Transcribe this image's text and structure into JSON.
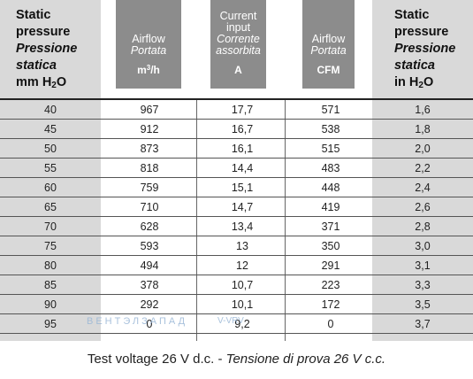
{
  "headers": {
    "col0": {
      "line1": "Static",
      "line2": "pressure",
      "line3": "Pressione",
      "line4": "statica",
      "line5_pre": "mm H",
      "line5_sub": "2",
      "line5_post": "O"
    },
    "col1": {
      "line1": "Airflow",
      "line2": "Portata",
      "unit_pre": "m",
      "unit_sup": "3",
      "unit_post": "/h"
    },
    "col2": {
      "line1": "Current",
      "line2": "input",
      "line3": "Corrente",
      "line4": "assorbita",
      "unit": "A"
    },
    "col3": {
      "line1": "Airflow",
      "line2": "Portata",
      "unit": "CFM"
    },
    "col4": {
      "line1": "Static",
      "line2": "pressure",
      "line3": "Pressione",
      "line4": "statica",
      "line5_pre": "in H",
      "line5_sub": "2",
      "line5_post": "O"
    }
  },
  "rows": [
    [
      "40",
      "967",
      "17,7",
      "571",
      "1,6"
    ],
    [
      "45",
      "912",
      "16,7",
      "538",
      "1,8"
    ],
    [
      "50",
      "873",
      "16,1",
      "515",
      "2,0"
    ],
    [
      "55",
      "818",
      "14,4",
      "483",
      "2,2"
    ],
    [
      "60",
      "759",
      "15,1",
      "448",
      "2,4"
    ],
    [
      "65",
      "710",
      "14,7",
      "419",
      "2,6"
    ],
    [
      "70",
      "628",
      "13,4",
      "371",
      "2,8"
    ],
    [
      "75",
      "593",
      "13",
      "350",
      "3,0"
    ],
    [
      "80",
      "494",
      "12",
      "291",
      "3,1"
    ],
    [
      "85",
      "378",
      "10,7",
      "223",
      "3,3"
    ],
    [
      "90",
      "292",
      "10,1",
      "172",
      "3,5"
    ],
    [
      "95",
      "0",
      "9,2",
      "0",
      "3,7"
    ]
  ],
  "watermark": {
    "text": "ВЕНТЭЛЗАПАД",
    "text2": "V-VRV"
  },
  "footer": {
    "normal": "Test voltage 26 V d.c. - ",
    "italic": "Tensione di prova 26 V c.c."
  },
  "colors": {
    "shade": "#d9d9d9",
    "header_box": "#8c8c8c",
    "watermark": "#9ab7d6"
  }
}
